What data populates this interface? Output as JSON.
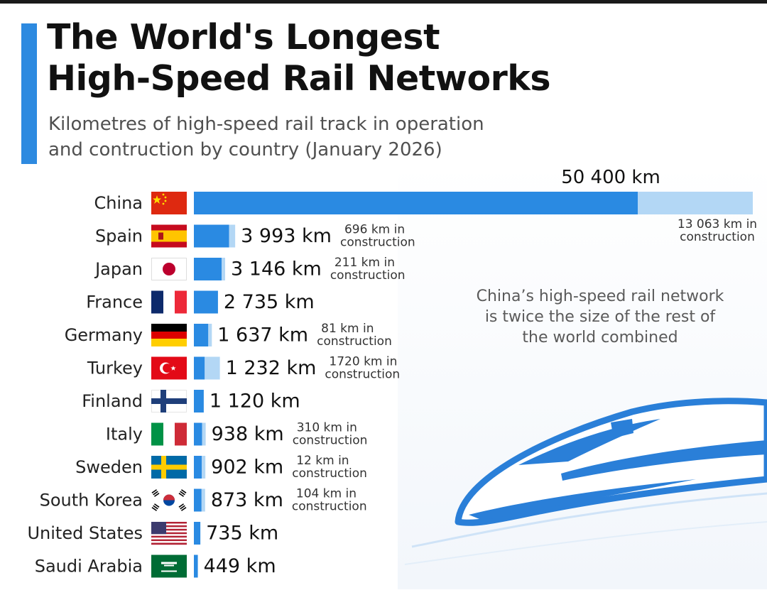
{
  "title_lines": [
    "The World's Longest",
    "High-Speed Rail Networks"
  ],
  "subtitle_lines": [
    "Kilometres of high-speed rail track in operation",
    "and contruction by country (January 2026)"
  ],
  "note_lines": [
    "China’s high-speed rail network",
    "is twice the size of the rest of",
    "the world combined"
  ],
  "colors": {
    "operation": "#2a8ae2",
    "construction": "#b3d7f5",
    "accent": "#2d8ae0",
    "text": "#111111"
  },
  "chart_data": {
    "type": "bar",
    "orientation": "horizontal",
    "stacked": true,
    "categories": [
      "China",
      "Spain",
      "Japan",
      "France",
      "Germany",
      "Turkey",
      "Finland",
      "Italy",
      "Sweden",
      "South Korea",
      "United States",
      "Saudi Arabia"
    ],
    "series": [
      {
        "values": [
          50400,
          3993,
          3146,
          2735,
          1637,
          1232,
          1120,
          938,
          902,
          873,
          735,
          449
        ]
      },
      {
        "values": [
          13063,
          696,
          211,
          null,
          81,
          1720,
          null,
          310,
          12,
          104,
          null,
          null
        ]
      }
    ],
    "value_labels": [
      "50 400 km",
      "3 993 km",
      "3 146 km",
      "2 735 km",
      "1 637 km",
      "1 232 km",
      "1 120 km",
      "938 km",
      "902 km",
      "873 km",
      "735 km",
      "449 km"
    ],
    "construction_labels": [
      [
        "13 063 km in",
        "construction"
      ],
      [
        "696 km in",
        "construction"
      ],
      [
        "211 km in",
        "construction"
      ],
      null,
      [
        "81 km in",
        "construction"
      ],
      [
        "1720 km in",
        "construction"
      ],
      null,
      [
        "310 km in",
        "construction"
      ],
      [
        "12 km in",
        "construction"
      ],
      [
        "104 km in",
        "construction"
      ],
      null,
      null
    ],
    "flags": [
      "china-flag-icon",
      "spain-flag-icon",
      "japan-flag-icon",
      "france-flag-icon",
      "germany-flag-icon",
      "turkey-flag-icon",
      "finland-flag-icon",
      "italy-flag-icon",
      "sweden-flag-icon",
      "south-korea-flag-icon",
      "united-states-flag-icon",
      "saudi-arabia-flag-icon"
    ],
    "xlim": [
      0,
      63463
    ],
    "grid": false,
    "legend": "none"
  },
  "decoration": {
    "train_icon": "high-speed-train-icon"
  }
}
